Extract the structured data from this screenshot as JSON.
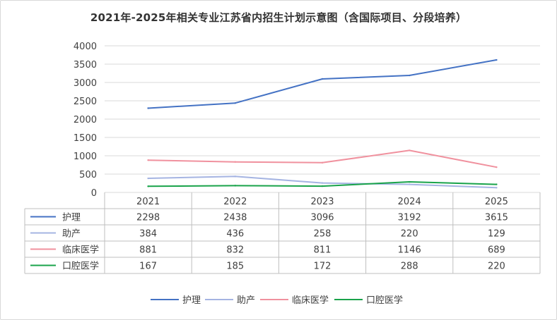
{
  "title": "2021年-2025年相关专业江苏省内招生计划示意图（含国际项目、分段培养）",
  "chart_data": {
    "type": "line",
    "categories": [
      "2021",
      "2022",
      "2023",
      "2024",
      "2025"
    ],
    "ylim": [
      0,
      4000
    ],
    "yticks": [
      "0",
      "500",
      "1000",
      "1500",
      "2000",
      "2500",
      "3000",
      "3500",
      "4000"
    ],
    "grid": true,
    "legend": "bottom",
    "series": [
      {
        "name": "护理",
        "values": [
          2298,
          2438,
          3096,
          3192,
          3615
        ],
        "color": "#4472c4"
      },
      {
        "name": "助产",
        "values": [
          384,
          436,
          258,
          220,
          129
        ],
        "color": "#a5b4e2"
      },
      {
        "name": "临床医学",
        "values": [
          881,
          832,
          811,
          1146,
          689
        ],
        "color": "#f0919e"
      },
      {
        "name": "口腔医学",
        "values": [
          167,
          185,
          172,
          288,
          220
        ],
        "color": "#19a34a"
      }
    ]
  }
}
